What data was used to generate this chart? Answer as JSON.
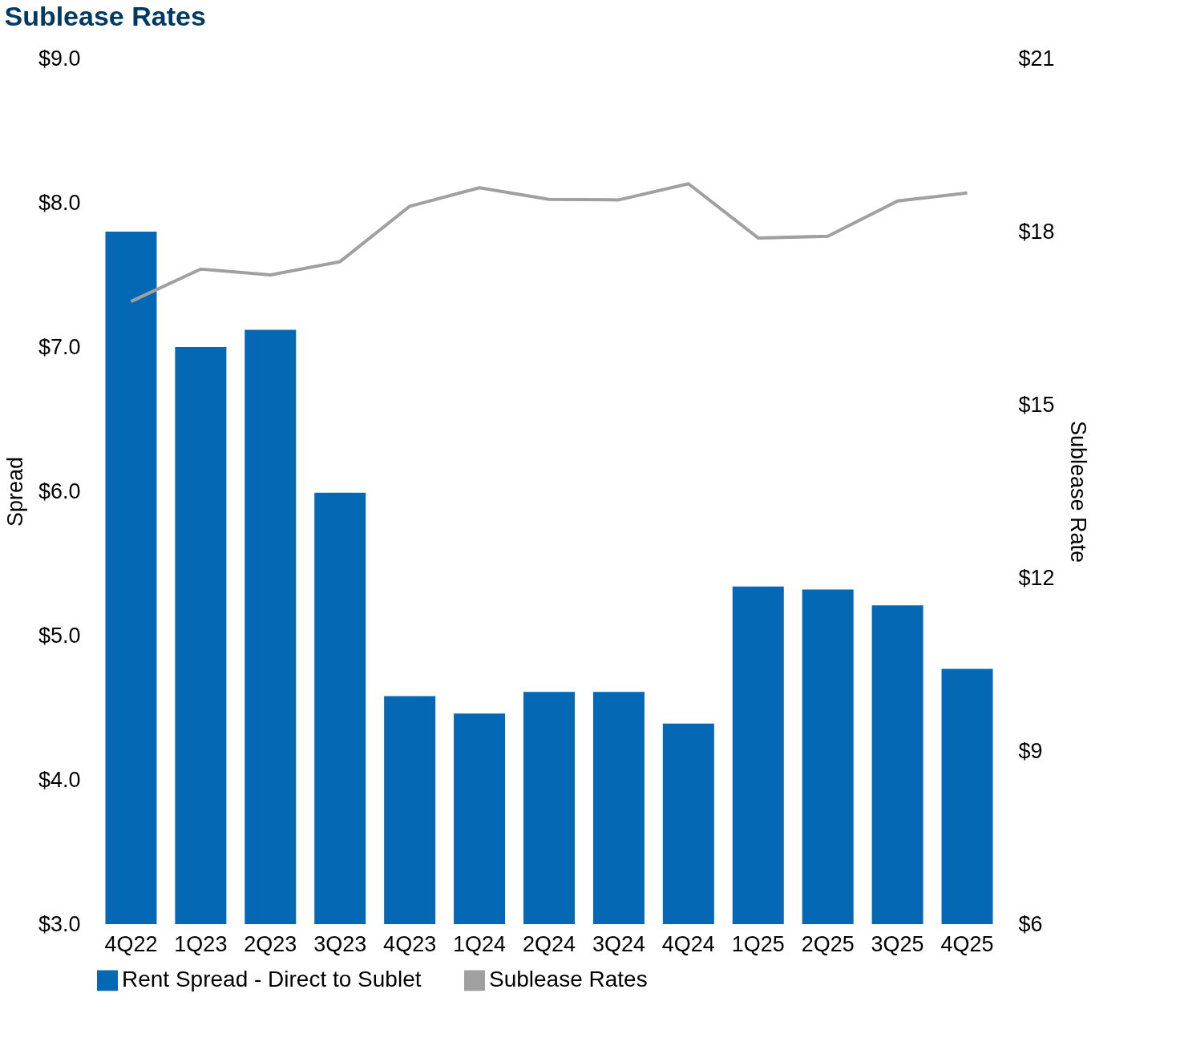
{
  "chart_data": {
    "type": "bar",
    "title": "Sublease Rates",
    "categories": [
      "4Q22",
      "1Q23",
      "2Q23",
      "3Q23",
      "4Q23",
      "1Q24",
      "2Q24",
      "3Q24",
      "4Q24",
      "1Q25",
      "2Q25",
      "3Q25",
      "4Q25"
    ],
    "series": [
      {
        "name": "Rent Spread - Direct to Sublet",
        "color": "#0468b4",
        "values": [
          7.8,
          7.0,
          7.12,
          5.99,
          4.58,
          4.46,
          4.61,
          4.61,
          4.39,
          5.34,
          5.32,
          5.21,
          4.77
        ]
      },
      {
        "name": "Sublease Rates",
        "type": "line",
        "axis": "y2",
        "color": "#a0a0a0",
        "values": [
          16.79,
          17.35,
          17.25,
          17.48,
          18.44,
          18.76,
          18.56,
          18.55,
          18.83,
          17.89,
          17.92,
          18.53,
          18.67
        ]
      }
    ],
    "ylabel": "Spread",
    "y2label": "Sublease Rate",
    "ylim": [
      3.0,
      9.0
    ],
    "yticks": [
      {
        "value": 3,
        "label": "$3.0"
      },
      {
        "value": 4,
        "label": "$4.0"
      },
      {
        "value": 5,
        "label": "$5.0"
      },
      {
        "value": 6,
        "label": "$6.0"
      },
      {
        "value": 7,
        "label": "$7.0"
      },
      {
        "value": 8,
        "label": "$8.0"
      },
      {
        "value": 9,
        "label": "$9.0"
      }
    ],
    "y2lim": [
      6,
      21
    ],
    "y2ticks": [
      {
        "value": 6,
        "label": "$6"
      },
      {
        "value": 9,
        "label": "$9"
      },
      {
        "value": 12,
        "label": "$12"
      },
      {
        "value": 15,
        "label": "$15"
      },
      {
        "value": 18,
        "label": "$18"
      },
      {
        "value": 21,
        "label": "$21"
      }
    ],
    "grid": false,
    "legend": "bottom"
  }
}
